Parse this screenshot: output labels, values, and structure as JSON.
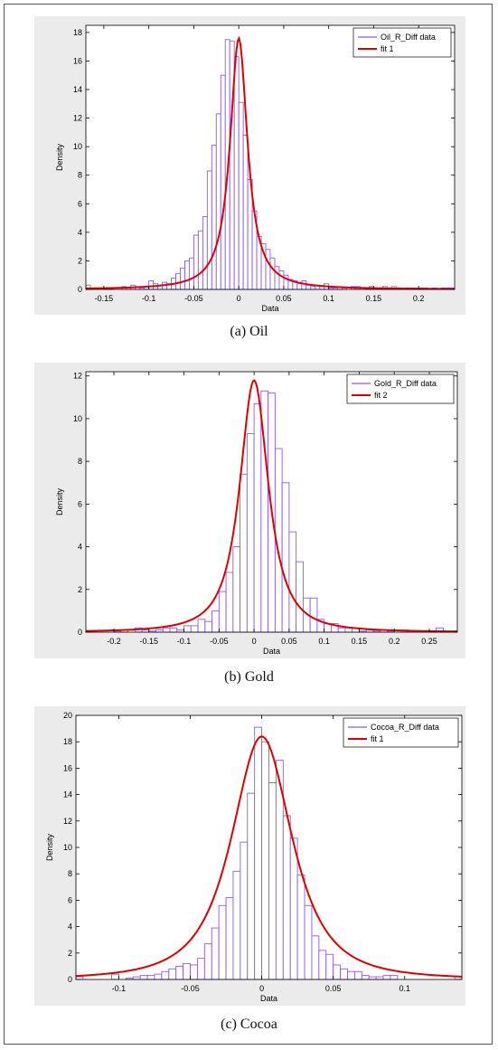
{
  "chart_data": [
    {
      "type": "bar",
      "xlabel": "Data",
      "ylabel": "Density",
      "xlim": [
        -0.17,
        0.24
      ],
      "ylim": [
        0,
        18.5
      ],
      "xticks": [
        -0.15,
        -0.1,
        -0.05,
        0,
        0.05,
        0.1,
        0.15,
        0.2
      ],
      "xtick_labels": [
        "-0.15",
        "-0.1",
        "-0.05",
        "0",
        "0.05",
        "0.1",
        "0.15",
        "0.2"
      ],
      "yticks": [
        0,
        2,
        4,
        6,
        8,
        10,
        12,
        14,
        16,
        18
      ],
      "ytick_labels": [
        "0",
        "2",
        "4",
        "6",
        "8",
        "10",
        "12",
        "14",
        "16",
        "18"
      ],
      "legend": {
        "position": "top-right",
        "entries": [
          "Oil_R_Diff data",
          "fit 1"
        ]
      },
      "bins": {
        "start": -0.17,
        "width": 0.005,
        "values": [
          0.3,
          0.1,
          0,
          0,
          0.1,
          0.1,
          0,
          0,
          0.2,
          0.1,
          0.3,
          0.2,
          0.1,
          0.2,
          0.6,
          0.4,
          0.3,
          0.5,
          0.4,
          0.8,
          1.1,
          1.5,
          2.0,
          2.2,
          3.8,
          4.1,
          5.1,
          8.3,
          10.1,
          12.3,
          15.0,
          17.5,
          17.4,
          16.3,
          13.1,
          10.8,
          7.7,
          5.5,
          3.7,
          3.2,
          2.8,
          2.2,
          1.6,
          1.3,
          1.0,
          0.7,
          0.6,
          0.4,
          0.6,
          0.3,
          0.2,
          0.3,
          0.2,
          0.4,
          0.1,
          0.1,
          0.2,
          0.1,
          0,
          0.2,
          0.2,
          0,
          0.1,
          0.2,
          0.1,
          0.1,
          0.2,
          0.1,
          0.2,
          0.1,
          0,
          0.1,
          0.1,
          0.1,
          0.1,
          0.1,
          0,
          0.1,
          0,
          0.1,
          0.1,
          0.1
        ]
      },
      "fit": {
        "name": "fit 1",
        "mu": 0.0,
        "peak": 17.6,
        "scale": 0.0115,
        "shape": 1.1
      },
      "colors": {
        "bars": "#8a5cf0",
        "fit": "#e00000"
      }
    },
    {
      "type": "bar",
      "xlabel": "Data",
      "ylabel": "Density",
      "xlim": [
        -0.24,
        0.29
      ],
      "ylim": [
        0,
        12.2
      ],
      "xticks": [
        -0.2,
        -0.15,
        -0.1,
        -0.05,
        0,
        0.05,
        0.1,
        0.15,
        0.2,
        0.25
      ],
      "xtick_labels": [
        "-0.2",
        "-0.15",
        "-0.1",
        "-0.05",
        "0",
        "0.05",
        "0.1",
        "0.15",
        "0.2",
        "0.25"
      ],
      "yticks": [
        0,
        2,
        4,
        6,
        8,
        10,
        12
      ],
      "ytick_labels": [
        "0",
        "2",
        "4",
        "6",
        "8",
        "10",
        "12"
      ],
      "legend": {
        "position": "top-right",
        "entries": [
          "Gold_R_Diff data",
          "fit 2"
        ]
      },
      "bins": {
        "start": -0.24,
        "width": 0.01,
        "values": [
          0.05,
          0,
          0,
          0,
          0.05,
          0.1,
          0,
          0.2,
          0.1,
          0.05,
          0.1,
          0.2,
          0.2,
          0.1,
          0.3,
          0.3,
          0.6,
          0.5,
          1.0,
          1.9,
          2.8,
          4.0,
          7.4,
          9.3,
          10.7,
          11.3,
          11.2,
          8.6,
          7.0,
          4.7,
          3.3,
          1.6,
          1.6,
          0.6,
          0.4,
          0.4,
          0.2,
          0.2,
          0.2,
          0.05,
          0.1,
          0.05,
          0.1,
          0.05,
          0,
          0.1,
          0,
          0,
          0,
          0.05,
          0.2,
          0.05,
          0
        ]
      },
      "fit": {
        "name": "fit 2",
        "mu": 0.0,
        "peak": 11.8,
        "scale": 0.023,
        "shape": 1.5
      },
      "colors": {
        "bars": "#8a5cf0",
        "fit": "#e00000"
      }
    },
    {
      "type": "bar",
      "xlabel": "Data",
      "ylabel": "Density",
      "xlim": [
        -0.13,
        0.14
      ],
      "ylim": [
        0,
        20
      ],
      "xticks": [
        -0.1,
        -0.05,
        0,
        0.05,
        0.1
      ],
      "xtick_labels": [
        "-0.1",
        "-0.05",
        "0",
        "0.05",
        "0.1"
      ],
      "yticks": [
        0,
        2,
        4,
        6,
        8,
        10,
        12,
        14,
        16,
        18,
        20
      ],
      "ytick_labels": [
        "0",
        "2",
        "4",
        "6",
        "8",
        "10",
        "12",
        "14",
        "16",
        "18",
        "20"
      ],
      "legend": {
        "position": "top-right",
        "entries": [
          "Cocoa_R_Diff data",
          "fit 1"
        ]
      },
      "bins": {
        "start": -0.13,
        "width": 0.005,
        "values": [
          0.2,
          0,
          0,
          0,
          0,
          0.4,
          0,
          0.1,
          0.2,
          0.3,
          0.3,
          0.4,
          0.6,
          0.8,
          1.0,
          1.2,
          1.1,
          1.6,
          2.7,
          3.9,
          5.6,
          6.2,
          8.2,
          10.4,
          14.1,
          19.1,
          18.0,
          14.9,
          16.6,
          12.4,
          10.7,
          7.9,
          5.6,
          3.3,
          2.2,
          1.9,
          1.1,
          0.8,
          0.6,
          0.6,
          0.3,
          0.2,
          0.2,
          0.3,
          0.3,
          0,
          0,
          0,
          0,
          0,
          0,
          0,
          0,
          0.2
        ]
      },
      "fit": {
        "name": "fit 1",
        "mu": 0.0,
        "peak": 18.4,
        "scale": 0.023,
        "shape": 2.0
      },
      "colors": {
        "bars": "#8a5cf0",
        "fit": "#e00000"
      }
    }
  ],
  "captions": {
    "oil": "(a) Oil",
    "gold": "(b) Gold",
    "cocoa": "(c) Cocoa"
  }
}
